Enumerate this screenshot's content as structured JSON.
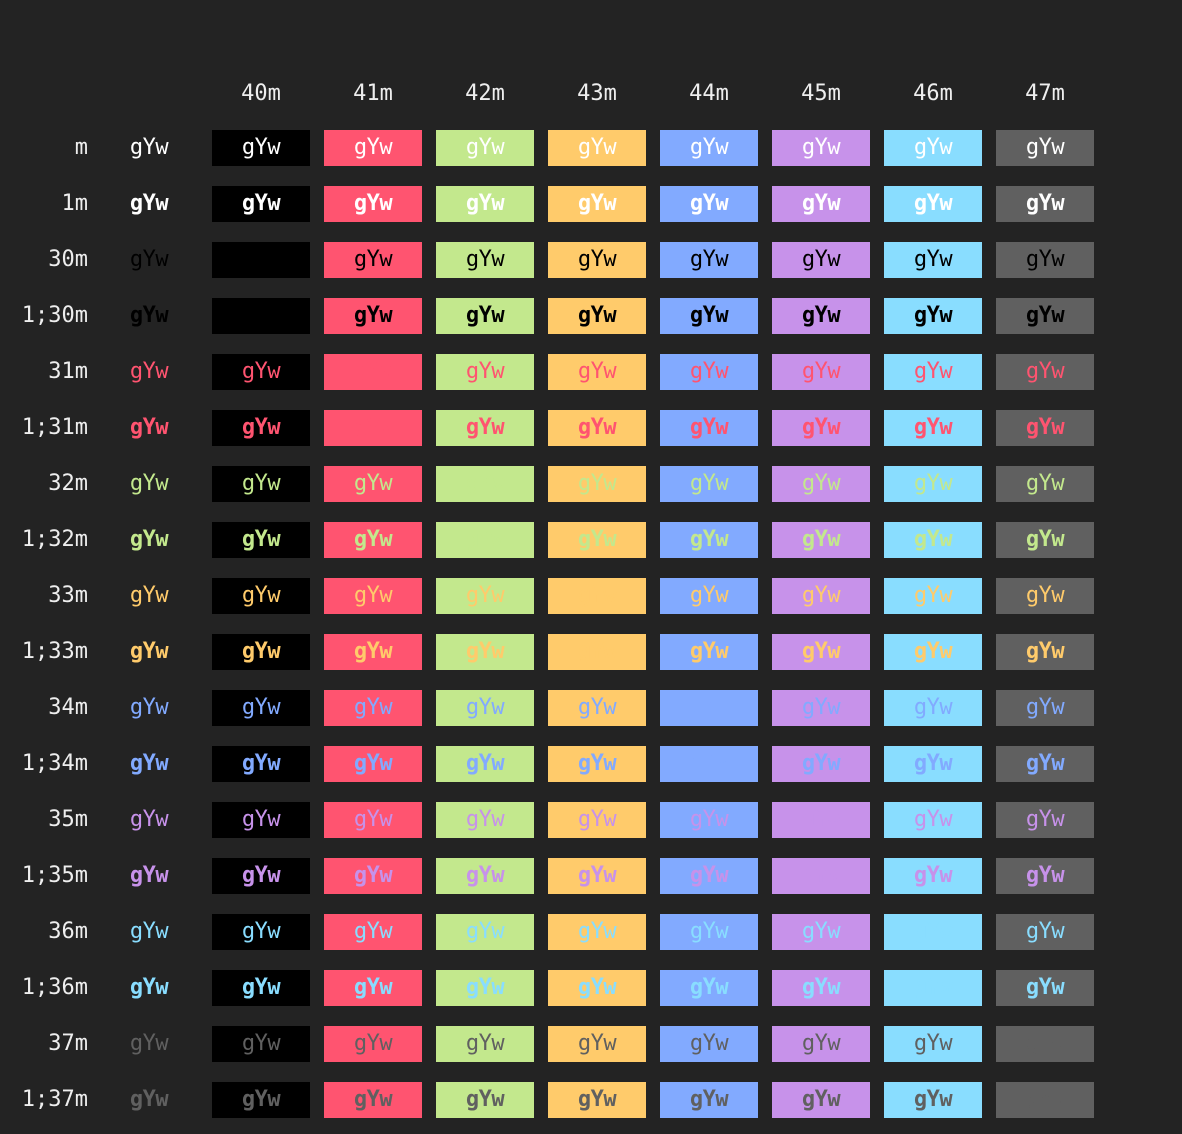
{
  "sample_text": "gYw",
  "colors": {
    "background": "#232323",
    "label": "#eeeeee",
    "default_fg": "#ffffff",
    "30": "#000000",
    "31": "#ff5470",
    "32": "#c3e88d",
    "33": "#ffcb6b",
    "34": "#82aaff",
    "35": "#c792ea",
    "36": "#89ddff",
    "37": "#606060",
    "40": "#000000",
    "41": "#ff5470",
    "42": "#c3e88d",
    "43": "#ffcb6b",
    "44": "#82aaff",
    "45": "#c792ea",
    "46": "#89ddff",
    "47": "#606060"
  },
  "columns": [
    {
      "label": "",
      "bg": null
    },
    {
      "label": "40m",
      "bg": "40"
    },
    {
      "label": "41m",
      "bg": "41"
    },
    {
      "label": "42m",
      "bg": "42"
    },
    {
      "label": "43m",
      "bg": "43"
    },
    {
      "label": "44m",
      "bg": "44"
    },
    {
      "label": "45m",
      "bg": "45"
    },
    {
      "label": "46m",
      "bg": "46"
    },
    {
      "label": "47m",
      "bg": "47"
    }
  ],
  "rows": [
    {
      "label": "m",
      "fg": null,
      "bold": false
    },
    {
      "label": "1m",
      "fg": null,
      "bold": true
    },
    {
      "label": "30m",
      "fg": "30",
      "bold": false
    },
    {
      "label": "1;30m",
      "fg": "30",
      "bold": true
    },
    {
      "label": "31m",
      "fg": "31",
      "bold": false
    },
    {
      "label": "1;31m",
      "fg": "31",
      "bold": true
    },
    {
      "label": "32m",
      "fg": "32",
      "bold": false
    },
    {
      "label": "1;32m",
      "fg": "32",
      "bold": true
    },
    {
      "label": "33m",
      "fg": "33",
      "bold": false
    },
    {
      "label": "1;33m",
      "fg": "33",
      "bold": true
    },
    {
      "label": "34m",
      "fg": "34",
      "bold": false
    },
    {
      "label": "1;34m",
      "fg": "34",
      "bold": true
    },
    {
      "label": "35m",
      "fg": "35",
      "bold": false
    },
    {
      "label": "1;35m",
      "fg": "35",
      "bold": true
    },
    {
      "label": "36m",
      "fg": "36",
      "bold": false
    },
    {
      "label": "1;36m",
      "fg": "36",
      "bold": true
    },
    {
      "label": "37m",
      "fg": "37",
      "bold": false
    },
    {
      "label": "1;37m",
      "fg": "37",
      "bold": true
    }
  ]
}
